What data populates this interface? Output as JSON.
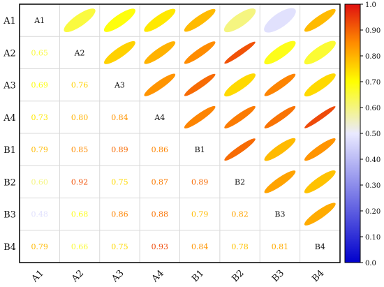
{
  "chart_data": {
    "type": "heatmap",
    "subtype": "correlation-matrix",
    "lower_triangle": "numbers",
    "upper_triangle": "ellipses",
    "variables": [
      "A1",
      "A2",
      "A3",
      "A4",
      "B1",
      "B2",
      "B3",
      "B4"
    ],
    "matrix": [
      [
        1.0,
        0.65,
        0.69,
        0.73,
        0.79,
        0.6,
        0.48,
        0.79
      ],
      [
        0.65,
        1.0,
        0.76,
        0.8,
        0.85,
        0.92,
        0.68,
        0.66
      ],
      [
        0.69,
        0.76,
        1.0,
        0.84,
        0.89,
        0.75,
        0.86,
        0.75
      ],
      [
        0.73,
        0.8,
        0.84,
        1.0,
        0.86,
        0.87,
        0.88,
        0.93
      ],
      [
        0.79,
        0.85,
        0.89,
        0.86,
        1.0,
        0.89,
        0.79,
        0.84
      ],
      [
        0.6,
        0.92,
        0.75,
        0.87,
        0.89,
        1.0,
        0.82,
        0.78
      ],
      [
        0.48,
        0.68,
        0.86,
        0.88,
        0.79,
        0.82,
        1.0,
        0.81
      ],
      [
        0.79,
        0.66,
        0.75,
        0.93,
        0.84,
        0.78,
        0.81,
        1.0
      ]
    ],
    "lower_labels": [
      [
        null,
        null,
        null,
        null,
        null,
        null,
        null,
        null
      ],
      [
        "0.65",
        null,
        null,
        null,
        null,
        null,
        null,
        null
      ],
      [
        "0.69",
        "0.76",
        null,
        null,
        null,
        null,
        null,
        null
      ],
      [
        "0.73",
        "0.80",
        "0.84",
        null,
        null,
        null,
        null,
        null
      ],
      [
        "0.79",
        "0.85",
        "0.89",
        "0.86",
        null,
        null,
        null,
        null
      ],
      [
        "0.60",
        "0.92",
        "0.75",
        "0.87",
        "0.89",
        null,
        null,
        null
      ],
      [
        "0.48",
        "0.68",
        "0.86",
        "0.88",
        "0.79",
        "0.82",
        null,
        null
      ],
      [
        "0.79",
        "0.66",
        "0.75",
        "0.93",
        "0.84",
        "0.78",
        "0.81",
        null
      ]
    ],
    "colorbar": {
      "range": [
        0.0,
        1.0
      ],
      "ticks": [
        "0.0",
        "0.10",
        "0.20",
        "0.30",
        "0.40",
        "0.50",
        "0.60",
        "0.70",
        "0.80",
        "0.90",
        "1.0"
      ],
      "colors": [
        "#0000cc",
        "#eaeaff",
        "#ffff00",
        "#ff8c00",
        "#e01010"
      ]
    },
    "title": "",
    "xlabel": "",
    "ylabel": "",
    "grid": true,
    "legend": "colorbar-right"
  }
}
